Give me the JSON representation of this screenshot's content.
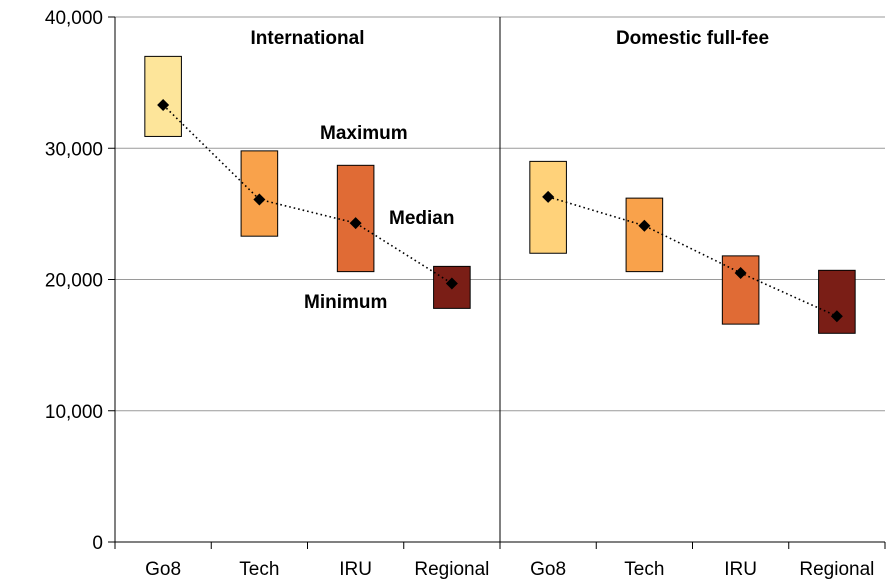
{
  "chart_data": {
    "type": "range-bar",
    "ylim": [
      0,
      40000
    ],
    "yticks": [
      {
        "value": 0,
        "label": "0"
      },
      {
        "value": 10000,
        "label": "10,000"
      },
      {
        "value": 20000,
        "label": "20,000"
      },
      {
        "value": 30000,
        "label": "30,000"
      },
      {
        "value": 40000,
        "label": "40,000"
      }
    ],
    "grid": true,
    "annotations": {
      "maximum": "Maximum",
      "median": "Median",
      "minimum": "Minimum"
    },
    "panels": [
      {
        "title": "International",
        "categories": [
          "Go8",
          "Tech",
          "IRU",
          "Regional"
        ],
        "min": [
          30900,
          23300,
          20600,
          17800
        ],
        "max": [
          37000,
          29800,
          28700,
          21000
        ],
        "median": [
          33300,
          26100,
          24300,
          19700
        ],
        "colors": [
          "#FDE59A",
          "#F9A24B",
          "#E06B35",
          "#7A1E16"
        ]
      },
      {
        "title": "Domestic full-fee",
        "categories": [
          "Go8",
          "Tech",
          "IRU",
          "Regional"
        ],
        "min": [
          22000,
          20600,
          16600,
          15900
        ],
        "max": [
          29000,
          26200,
          21800,
          20700
        ],
        "median": [
          26300,
          24100,
          20500,
          17200
        ],
        "colors": [
          "#FFD27A",
          "#F9A24B",
          "#E06B35",
          "#7A1E16"
        ]
      }
    ]
  }
}
